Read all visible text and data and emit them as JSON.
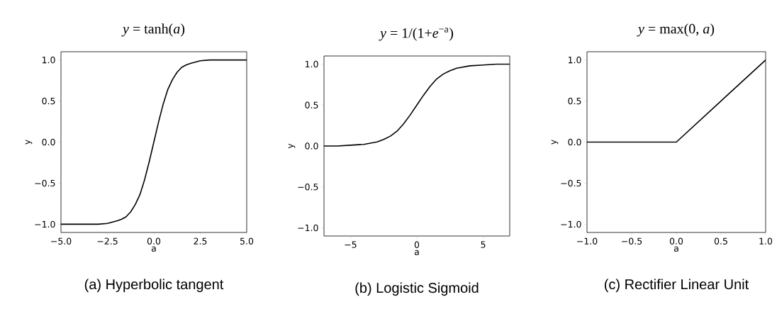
{
  "chart_data": [
    {
      "type": "line",
      "title": "*y* = tanh(*a*)",
      "xlabel": "a",
      "ylabel": "y",
      "annotations": [
        "(a) Hyperbolic tangent"
      ],
      "color": "#000000",
      "x": [
        -5,
        -4,
        -3,
        -2.5,
        -2,
        -1.75,
        -1.5,
        -1.25,
        -1,
        -0.75,
        -0.5,
        -0.25,
        0,
        0.25,
        0.5,
        0.75,
        1,
        1.25,
        1.5,
        1.75,
        2,
        2.5,
        3,
        4,
        5
      ],
      "values": [
        -1.0,
        -1.0,
        -1.0,
        -0.99,
        -0.96,
        -0.94,
        -0.91,
        -0.85,
        -0.76,
        -0.64,
        -0.46,
        -0.24,
        0.0,
        0.24,
        0.46,
        0.64,
        0.76,
        0.85,
        0.91,
        0.94,
        0.96,
        0.99,
        1.0,
        1.0,
        1.0
      ],
      "xlim": [
        -5,
        5
      ],
      "ylim": [
        -1.1,
        1.1
      ],
      "xticks": [
        {
          "value": -5,
          "label": "−5.0"
        },
        {
          "value": -2.5,
          "label": "−2.5"
        },
        {
          "value": 0,
          "label": "0.0"
        },
        {
          "value": 2.5,
          "label": "2.5"
        },
        {
          "value": 5,
          "label": "5.0"
        }
      ],
      "yticks": [
        {
          "value": -1,
          "label": "−1.0"
        },
        {
          "value": -0.5,
          "label": "−0.5"
        },
        {
          "value": 0,
          "label": "0.0"
        },
        {
          "value": 0.5,
          "label": "0.5"
        },
        {
          "value": 1,
          "label": "1.0"
        }
      ]
    },
    {
      "type": "line",
      "title": "*y* = 1/(1+*e*$^{−a}$)",
      "xlabel": "a",
      "ylabel": "y",
      "annotations": [
        "(b) Logistic Sigmoid"
      ],
      "color": "#000000",
      "x": [
        -7,
        -6,
        -5,
        -4,
        -3,
        -2.5,
        -2,
        -1.5,
        -1,
        -0.5,
        0,
        0.5,
        1,
        1.5,
        2,
        2.5,
        3,
        4,
        5,
        6,
        7
      ],
      "values": [
        0.0,
        0.0,
        0.01,
        0.02,
        0.05,
        0.08,
        0.12,
        0.18,
        0.27,
        0.38,
        0.5,
        0.62,
        0.73,
        0.82,
        0.88,
        0.92,
        0.95,
        0.98,
        0.99,
        1.0,
        1.0
      ],
      "xlim": [
        -7,
        7
      ],
      "ylim": [
        -1.1,
        1.1
      ],
      "xticks": [
        {
          "value": -5,
          "label": "−5"
        },
        {
          "value": 0,
          "label": "0"
        },
        {
          "value": 5,
          "label": "5"
        }
      ],
      "yticks": [
        {
          "value": -1,
          "label": "−1.0"
        },
        {
          "value": -0.5,
          "label": "−0.5"
        },
        {
          "value": 0,
          "label": "0.0"
        },
        {
          "value": 0.5,
          "label": "0.5"
        },
        {
          "value": 1,
          "label": "1.0"
        }
      ]
    },
    {
      "type": "line",
      "title": "*y* = max(0, *a*)",
      "xlabel": "a",
      "ylabel": "y",
      "annotations": [
        "(c) Rectifier Linear Unit"
      ],
      "color": "#000000",
      "x": [
        -1,
        0,
        1
      ],
      "values": [
        0,
        0,
        1
      ],
      "xlim": [
        -1,
        1
      ],
      "ylim": [
        -1.1,
        1.1
      ],
      "xticks": [
        {
          "value": -1,
          "label": "−1.0"
        },
        {
          "value": -0.5,
          "label": "−0.5"
        },
        {
          "value": 0,
          "label": "0.0"
        },
        {
          "value": 0.5,
          "label": "0.5"
        },
        {
          "value": 1,
          "label": "1.0"
        }
      ],
      "yticks": [
        {
          "value": -1,
          "label": "−1.0"
        },
        {
          "value": -0.5,
          "label": "−0.5"
        },
        {
          "value": 0,
          "label": "0.0"
        },
        {
          "value": 0.5,
          "label": "0.5"
        },
        {
          "value": 1,
          "label": "1.0"
        }
      ]
    }
  ]
}
